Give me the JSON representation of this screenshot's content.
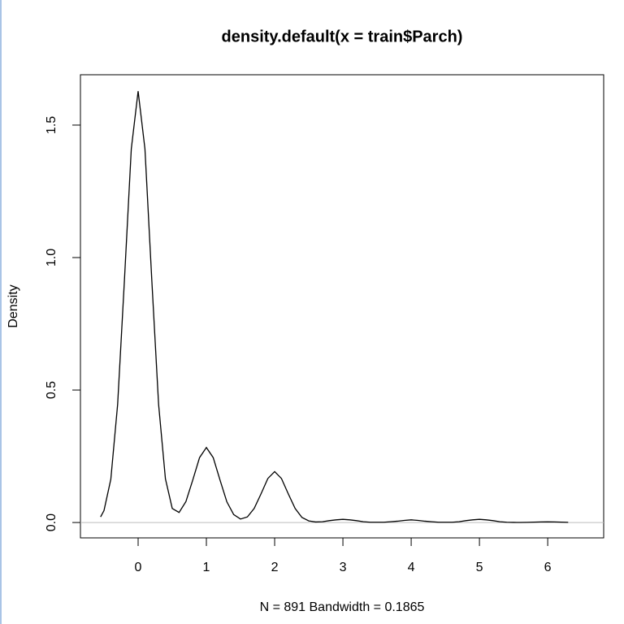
{
  "chart_data": {
    "type": "line",
    "title": "density.default(x = train$Parch)",
    "xlabel": "N = 891   Bandwidth = 0.1865",
    "ylabel": "Density",
    "x": [
      -0.55,
      -0.5,
      -0.4,
      -0.3,
      -0.2,
      -0.1,
      0,
      0.1,
      0.2,
      0.3,
      0.4,
      0.5,
      0.6,
      0.7,
      0.8,
      0.9,
      1,
      1.1,
      1.2,
      1.3,
      1.4,
      1.5,
      1.6,
      1.7,
      1.8,
      1.9,
      2,
      2.1,
      2.2,
      2.3,
      2.4,
      2.5,
      2.6,
      2.7,
      2.8,
      2.9,
      3,
      3.1,
      3.2,
      3.3,
      3.4,
      3.5,
      3.6,
      3.7,
      3.8,
      3.9,
      4,
      4.1,
      4.2,
      4.3,
      4.4,
      4.5,
      4.6,
      4.7,
      4.8,
      4.9,
      5,
      5.1,
      5.2,
      5.3,
      5.4,
      5.5,
      5.6,
      5.7,
      5.8,
      5.9,
      6,
      6.1,
      6.2,
      6.3
    ],
    "values": [
      0.021,
      0.045,
      0.163,
      0.446,
      0.917,
      1.41,
      1.628,
      1.41,
      0.917,
      0.446,
      0.165,
      0.053,
      0.038,
      0.079,
      0.16,
      0.245,
      0.283,
      0.245,
      0.16,
      0.078,
      0.03,
      0.013,
      0.021,
      0.053,
      0.108,
      0.166,
      0.192,
      0.166,
      0.108,
      0.053,
      0.019,
      0.006,
      0.002,
      0.003,
      0.007,
      0.01,
      0.012,
      0.01,
      0.007,
      0.003,
      0.001,
      0.001,
      0.001,
      0.003,
      0.005,
      0.008,
      0.01,
      0.008,
      0.005,
      0.003,
      0.001,
      0.001,
      0.001,
      0.003,
      0.007,
      0.01,
      0.012,
      0.01,
      0.007,
      0.003,
      0.001,
      0.0004,
      0.0003,
      0.0007,
      0.0014,
      0.0021,
      0.0024,
      0.0021,
      0.0014,
      0.0007
    ],
    "color": "#000000",
    "zero_line_color": "#bebebe",
    "xlim": [
      -0.845,
      6.82
    ],
    "ylim": [
      -0.058,
      1.69
    ],
    "xticks": [
      0,
      1,
      2,
      3,
      4,
      5,
      6
    ],
    "yticks": [
      {
        "value": 0,
        "label": "0.0"
      },
      {
        "value": 0.5,
        "label": "0.5"
      },
      {
        "value": 1,
        "label": "1.0"
      },
      {
        "value": 1.5,
        "label": "1.5"
      }
    ]
  }
}
